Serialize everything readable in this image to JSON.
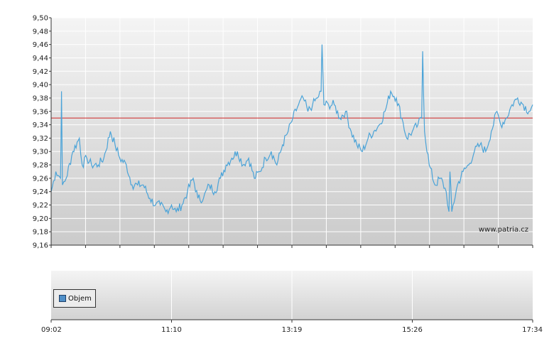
{
  "chart_data": [
    {
      "type": "line",
      "ylim": [
        9.16,
        9.5
      ],
      "y_ticks": [
        "9,16",
        "9,18",
        "9,20",
        "9,22",
        "9,24",
        "9,26",
        "9,28",
        "9,30",
        "9,32",
        "9,34",
        "9,36",
        "9,38",
        "9,40",
        "9,42",
        "9,44",
        "9,46",
        "9,48",
        "9,50"
      ],
      "x_ticks": [
        "09:02",
        "11:10",
        "13:19",
        "15:26",
        "17:34"
      ],
      "reference_line": 9.35,
      "watermark": "www.patria.cz",
      "grid": true,
      "colors": {
        "series": "#4aa3d8",
        "reference": "#cc2222",
        "background_top": "#f4f4f4",
        "background_bottom": "#cbcbcb",
        "grid": "#ffffff"
      },
      "series": [
        {
          "x": [
            "09:02",
            "09:07",
            "09:12",
            "09:13",
            "09:14",
            "09:18",
            "09:25",
            "09:32",
            "09:35",
            "09:40",
            "09:45",
            "09:52",
            "09:58",
            "10:05",
            "10:10",
            "10:15",
            "10:22",
            "10:28",
            "10:34",
            "10:40",
            "10:47",
            "10:53",
            "10:58",
            "11:04",
            "11:10",
            "11:15",
            "11:21",
            "11:27",
            "11:33",
            "11:38",
            "11:44",
            "11:50",
            "11:56",
            "12:02",
            "12:08",
            "12:14",
            "12:20",
            "12:26",
            "12:32",
            "12:38",
            "12:44",
            "12:50",
            "12:56",
            "13:02",
            "13:08",
            "13:14",
            "13:19",
            "13:25",
            "13:30",
            "13:35",
            "13:40",
            "13:45",
            "13:49",
            "13:50",
            "13:52",
            "13:57",
            "14:03",
            "14:09",
            "14:15",
            "14:21",
            "14:27",
            "14:33",
            "14:39",
            "14:45",
            "14:51",
            "14:57",
            "15:03",
            "15:09",
            "15:15",
            "15:20",
            "15:26",
            "15:32",
            "15:36",
            "15:37",
            "15:39",
            "15:44",
            "15:50",
            "15:56",
            "16:02",
            "16:05",
            "16:06",
            "16:08",
            "16:14",
            "16:20",
            "16:26",
            "16:32",
            "16:38",
            "16:44",
            "16:50",
            "16:56",
            "17:00",
            "17:06",
            "17:12",
            "17:18",
            "17:24",
            "17:30",
            "17:34"
          ],
          "values": [
            9.24,
            9.27,
            9.26,
            9.39,
            9.25,
            9.26,
            9.3,
            9.32,
            9.28,
            9.29,
            9.28,
            9.28,
            9.29,
            9.33,
            9.31,
            9.29,
            9.28,
            9.25,
            9.25,
            9.25,
            9.23,
            9.22,
            9.22,
            9.21,
            9.22,
            9.21,
            9.22,
            9.24,
            9.26,
            9.23,
            9.23,
            9.25,
            9.24,
            9.26,
            9.28,
            9.29,
            9.3,
            9.28,
            9.29,
            9.26,
            9.27,
            9.29,
            9.3,
            9.28,
            9.31,
            9.33,
            9.35,
            9.37,
            9.38,
            9.36,
            9.37,
            9.38,
            9.39,
            9.46,
            9.37,
            9.37,
            9.37,
            9.35,
            9.36,
            9.33,
            9.31,
            9.3,
            9.32,
            9.33,
            9.34,
            9.36,
            9.39,
            9.38,
            9.35,
            9.32,
            9.33,
            9.34,
            9.35,
            9.45,
            9.33,
            9.28,
            9.25,
            9.26,
            9.24,
            9.21,
            9.27,
            9.21,
            9.25,
            9.27,
            9.28,
            9.3,
            9.31,
            9.3,
            9.33,
            9.36,
            9.34,
            9.35,
            9.37,
            9.38,
            9.37,
            9.36,
            9.37
          ]
        }
      ]
    },
    {
      "type": "bar",
      "legend": [
        "Objem"
      ],
      "x_ticks": [
        "09:02",
        "11:10",
        "13:19",
        "15:26",
        "17:34"
      ],
      "series": [
        {
          "name": "Objem",
          "values": []
        }
      ]
    }
  ]
}
